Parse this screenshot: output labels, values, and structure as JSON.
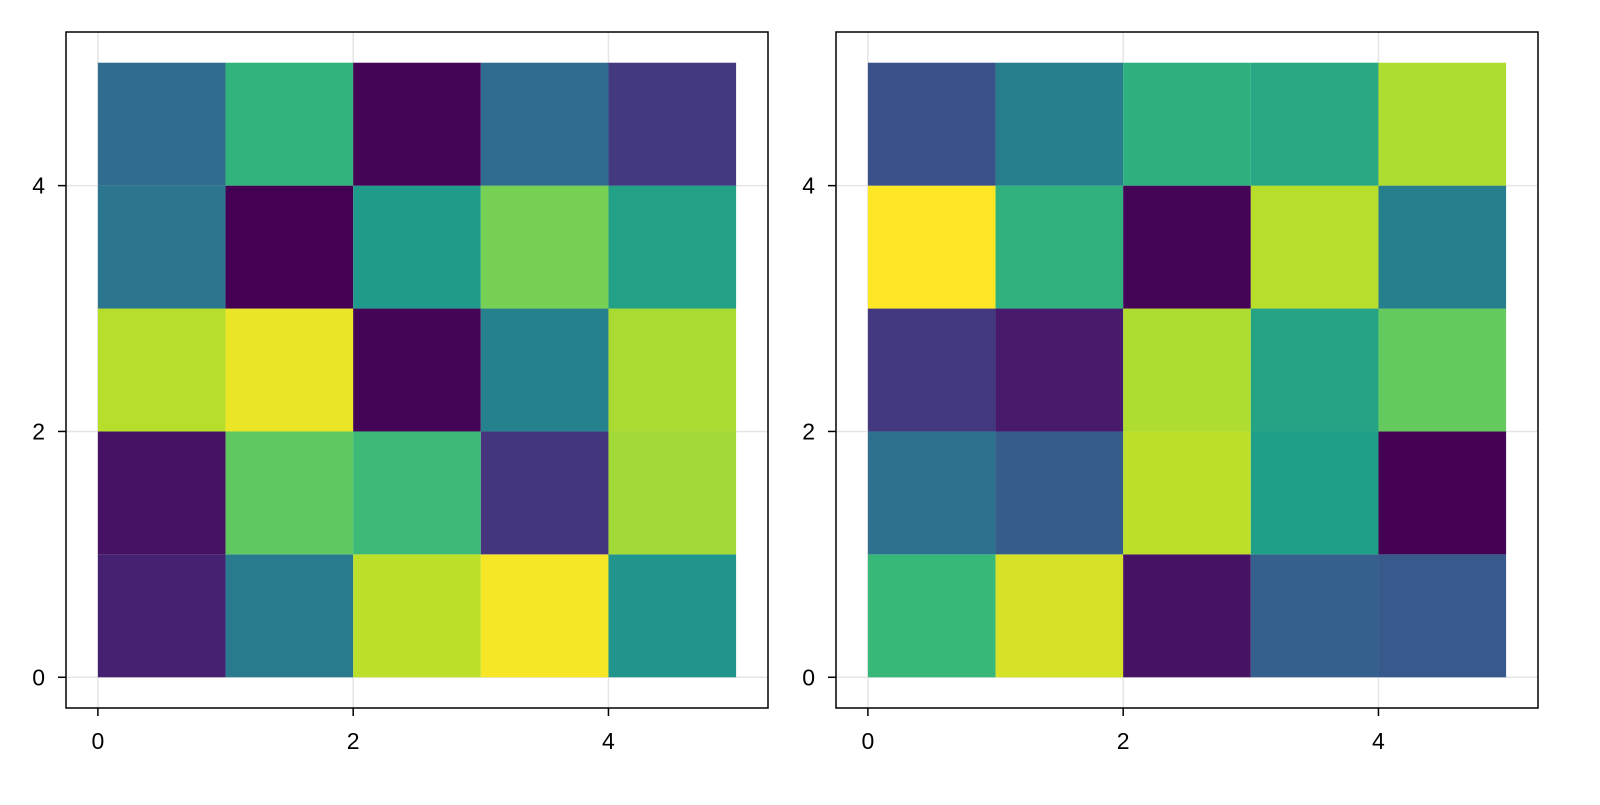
{
  "chart_data": [
    {
      "type": "heatmap",
      "title": "",
      "xlabel": "",
      "ylabel": "",
      "x_edges": [
        0,
        1,
        2,
        3,
        4,
        5
      ],
      "y_edges": [
        0,
        1,
        2,
        3,
        4,
        5
      ],
      "xlim": [
        -0.25,
        5.25
      ],
      "ylim": [
        -0.25,
        5.25
      ],
      "x_ticks": [
        0,
        2,
        4
      ],
      "y_ticks": [
        0,
        2,
        4
      ],
      "x_tick_labels": [
        "0",
        "2",
        "4"
      ],
      "y_tick_labels": [
        "0",
        "2",
        "4"
      ],
      "grid": true,
      "colormap": "viridis",
      "rows_bottom_to_top": [
        [
          0.09,
          0.41,
          0.9,
          0.99,
          0.52
        ],
        [
          0.05,
          0.75,
          0.68,
          0.15,
          0.86
        ],
        [
          0.89,
          0.97,
          0.01,
          0.44,
          0.87
        ],
        [
          0.39,
          0.0,
          0.54,
          0.79,
          0.57
        ],
        [
          0.35,
          0.65,
          0.01,
          0.35,
          0.17
        ]
      ]
    },
    {
      "type": "heatmap",
      "title": "",
      "xlabel": "",
      "ylabel": "",
      "x_edges": [
        0,
        1,
        2,
        3,
        4,
        5
      ],
      "y_edges": [
        0,
        1,
        2,
        3,
        4,
        5
      ],
      "xlim": [
        -0.25,
        5.25
      ],
      "ylim": [
        -0.25,
        5.25
      ],
      "x_ticks": [
        0,
        2,
        4
      ],
      "y_ticks": [
        0,
        2,
        4
      ],
      "x_tick_labels": [
        "0",
        "2",
        "4"
      ],
      "y_tick_labels": [
        "0",
        "2",
        "4"
      ],
      "grid": true,
      "colormap": "viridis",
      "rows_bottom_to_top": [
        [
          0.67,
          0.94,
          0.05,
          0.3,
          0.28
        ],
        [
          0.37,
          0.29,
          0.9,
          0.56,
          0.0
        ],
        [
          0.17,
          0.07,
          0.88,
          0.58,
          0.76
        ],
        [
          1.0,
          0.64,
          0.01,
          0.89,
          0.43
        ],
        [
          0.25,
          0.43,
          0.63,
          0.6,
          0.88
        ]
      ]
    }
  ]
}
